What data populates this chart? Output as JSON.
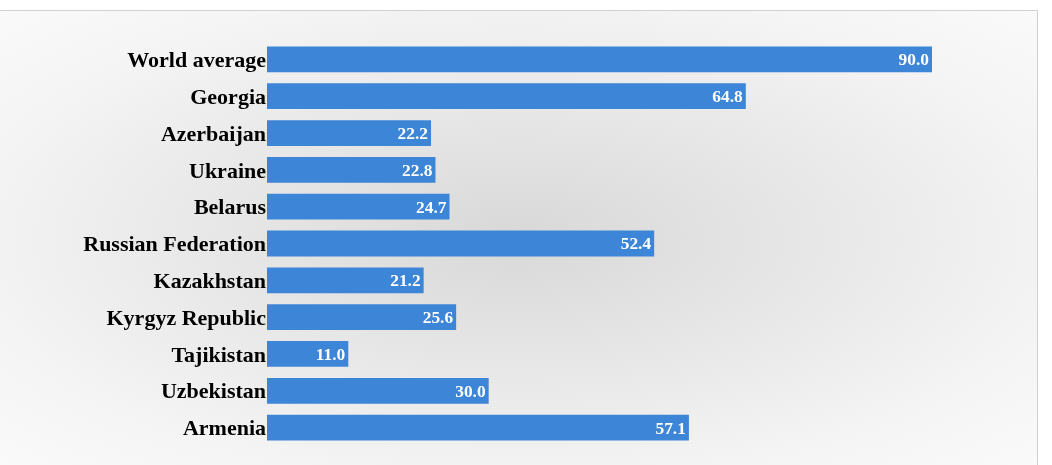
{
  "chart_data": {
    "type": "bar",
    "orientation": "horizontal",
    "categories": [
      "World average",
      "Georgia",
      "Azerbaijan",
      "Ukraine",
      "Belarus",
      "Russian Federation",
      "Kazakhstan",
      "Kyrgyz Republic",
      "Tajikistan",
      "Uzbekistan",
      "Armenia"
    ],
    "values": [
      90.0,
      64.8,
      22.2,
      22.8,
      24.7,
      52.4,
      21.2,
      25.6,
      11.0,
      30.0,
      57.1
    ],
    "value_labels": [
      "90.0",
      "64.8",
      "22.2",
      "22.8",
      "24.7",
      "52.4",
      "21.2",
      "25.6",
      "11.0",
      "30.0",
      "57.1"
    ],
    "color": "#3d85d6",
    "grid": false,
    "tick_labels": "y"
  }
}
